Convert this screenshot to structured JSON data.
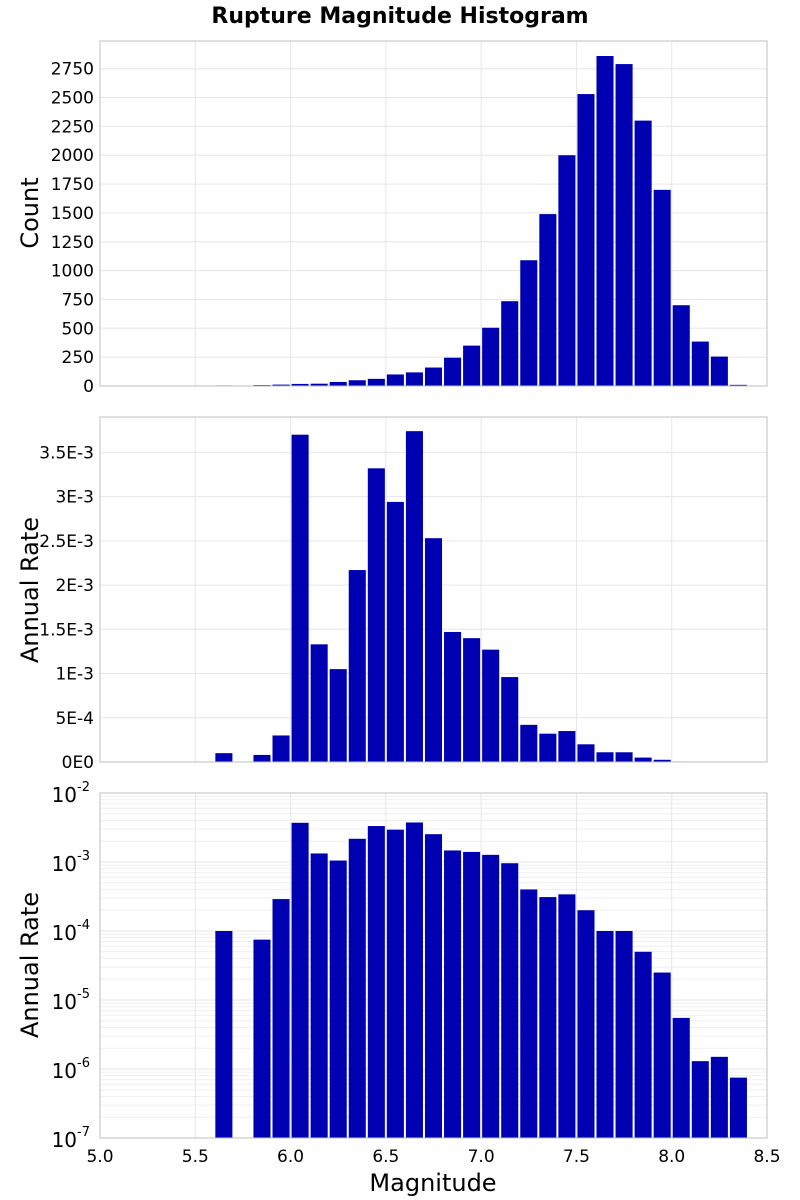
{
  "title": "Rupture Magnitude Histogram",
  "xlabel": "Magnitude",
  "bar_color": "#0000b3",
  "chart_data": [
    {
      "type": "bar",
      "panel": "count",
      "title": "Rupture Magnitude Histogram",
      "xlabel": "Magnitude",
      "ylabel": "Count",
      "xlim": [
        5.0,
        8.5
      ],
      "ylim": [
        0,
        2990
      ],
      "yticks": [
        0,
        250,
        500,
        750,
        1000,
        1250,
        1500,
        1750,
        2000,
        2250,
        2500,
        2750
      ],
      "ytick_labels": [
        "0",
        "250",
        "500",
        "750",
        "1000",
        "1250",
        "1500",
        "1750",
        "2000",
        "2250",
        "2500",
        "2750"
      ],
      "bin_width": 0.1,
      "x": [
        5.65,
        5.85,
        5.95,
        6.05,
        6.15,
        6.25,
        6.35,
        6.45,
        6.55,
        6.65,
        6.75,
        6.85,
        6.95,
        7.05,
        7.15,
        7.25,
        7.35,
        7.45,
        7.55,
        7.65,
        7.75,
        7.85,
        7.95,
        8.05,
        8.15,
        8.25,
        8.35
      ],
      "values": [
        5,
        8,
        12,
        18,
        20,
        35,
        50,
        62,
        100,
        118,
        160,
        245,
        350,
        505,
        735,
        1090,
        1490,
        2000,
        2530,
        2860,
        2790,
        2300,
        1700,
        700,
        385,
        255,
        10
      ]
    },
    {
      "type": "bar",
      "panel": "rate-linear",
      "ylabel": "Annual Rate",
      "xlim": [
        5.0,
        8.5
      ],
      "ylim": [
        0,
        0.0039
      ],
      "yticks": [
        0,
        0.0005,
        0.001,
        0.0015,
        0.002,
        0.0025,
        0.003,
        0.0035
      ],
      "ytick_labels": [
        "0E0",
        "5E-4",
        "1E-3",
        "1.5E-3",
        "2E-3",
        "2.5E-3",
        "3E-3",
        "3.5E-3"
      ],
      "bin_width": 0.1,
      "x": [
        5.65,
        5.85,
        5.95,
        6.05,
        6.15,
        6.25,
        6.35,
        6.45,
        6.55,
        6.65,
        6.75,
        6.85,
        6.95,
        7.05,
        7.15,
        7.25,
        7.35,
        7.45,
        7.55,
        7.65,
        7.75,
        7.85,
        7.95,
        8.05,
        8.15,
        8.25,
        8.35
      ],
      "values": [
        0.0001,
        8e-05,
        0.0003,
        0.0037,
        0.00133,
        0.00105,
        0.00217,
        0.00332,
        0.00294,
        0.00374,
        0.00253,
        0.00147,
        0.0014,
        0.00127,
        0.00096,
        0.00042,
        0.00032,
        0.00035,
        0.0002,
        0.00011,
        0.00011,
        5e-05,
        2.5e-05,
        6e-06,
        1.4e-06,
        1.6e-06,
        8e-07
      ]
    },
    {
      "type": "bar",
      "panel": "rate-log",
      "ylabel": "Annual Rate",
      "xlabel": "Magnitude",
      "yscale": "log",
      "xlim": [
        5.0,
        8.5
      ],
      "ylim": [
        1e-07,
        0.01
      ],
      "xticks": [
        5.0,
        5.5,
        6.0,
        6.5,
        7.0,
        7.5,
        8.0,
        8.5
      ],
      "xtick_labels": [
        "5.0",
        "5.5",
        "6.0",
        "6.5",
        "7.0",
        "7.5",
        "8.0",
        "8.5"
      ],
      "yticks": [
        1e-07,
        1e-06,
        1e-05,
        0.0001,
        0.001,
        0.01
      ],
      "ytick_exponents": [
        "-7",
        "-6",
        "-5",
        "-4",
        "-3",
        "-2"
      ],
      "ytick_base": "10",
      "bin_width": 0.1,
      "x": [
        5.65,
        5.85,
        5.95,
        6.05,
        6.15,
        6.25,
        6.35,
        6.45,
        6.55,
        6.65,
        6.75,
        6.85,
        6.95,
        7.05,
        7.15,
        7.25,
        7.35,
        7.45,
        7.55,
        7.65,
        7.75,
        7.85,
        7.95,
        8.05,
        8.15,
        8.25,
        8.35
      ],
      "values": [
        0.0001,
        7.5e-05,
        0.00029,
        0.0037,
        0.00133,
        0.00105,
        0.00217,
        0.00332,
        0.00294,
        0.00374,
        0.00253,
        0.00147,
        0.0014,
        0.00127,
        0.00096,
        0.0004,
        0.00031,
        0.00034,
        0.0002,
        0.0001,
        0.0001,
        5e-05,
        2.5e-05,
        5.5e-06,
        1.3e-06,
        1.5e-06,
        7.5e-07
      ]
    }
  ]
}
